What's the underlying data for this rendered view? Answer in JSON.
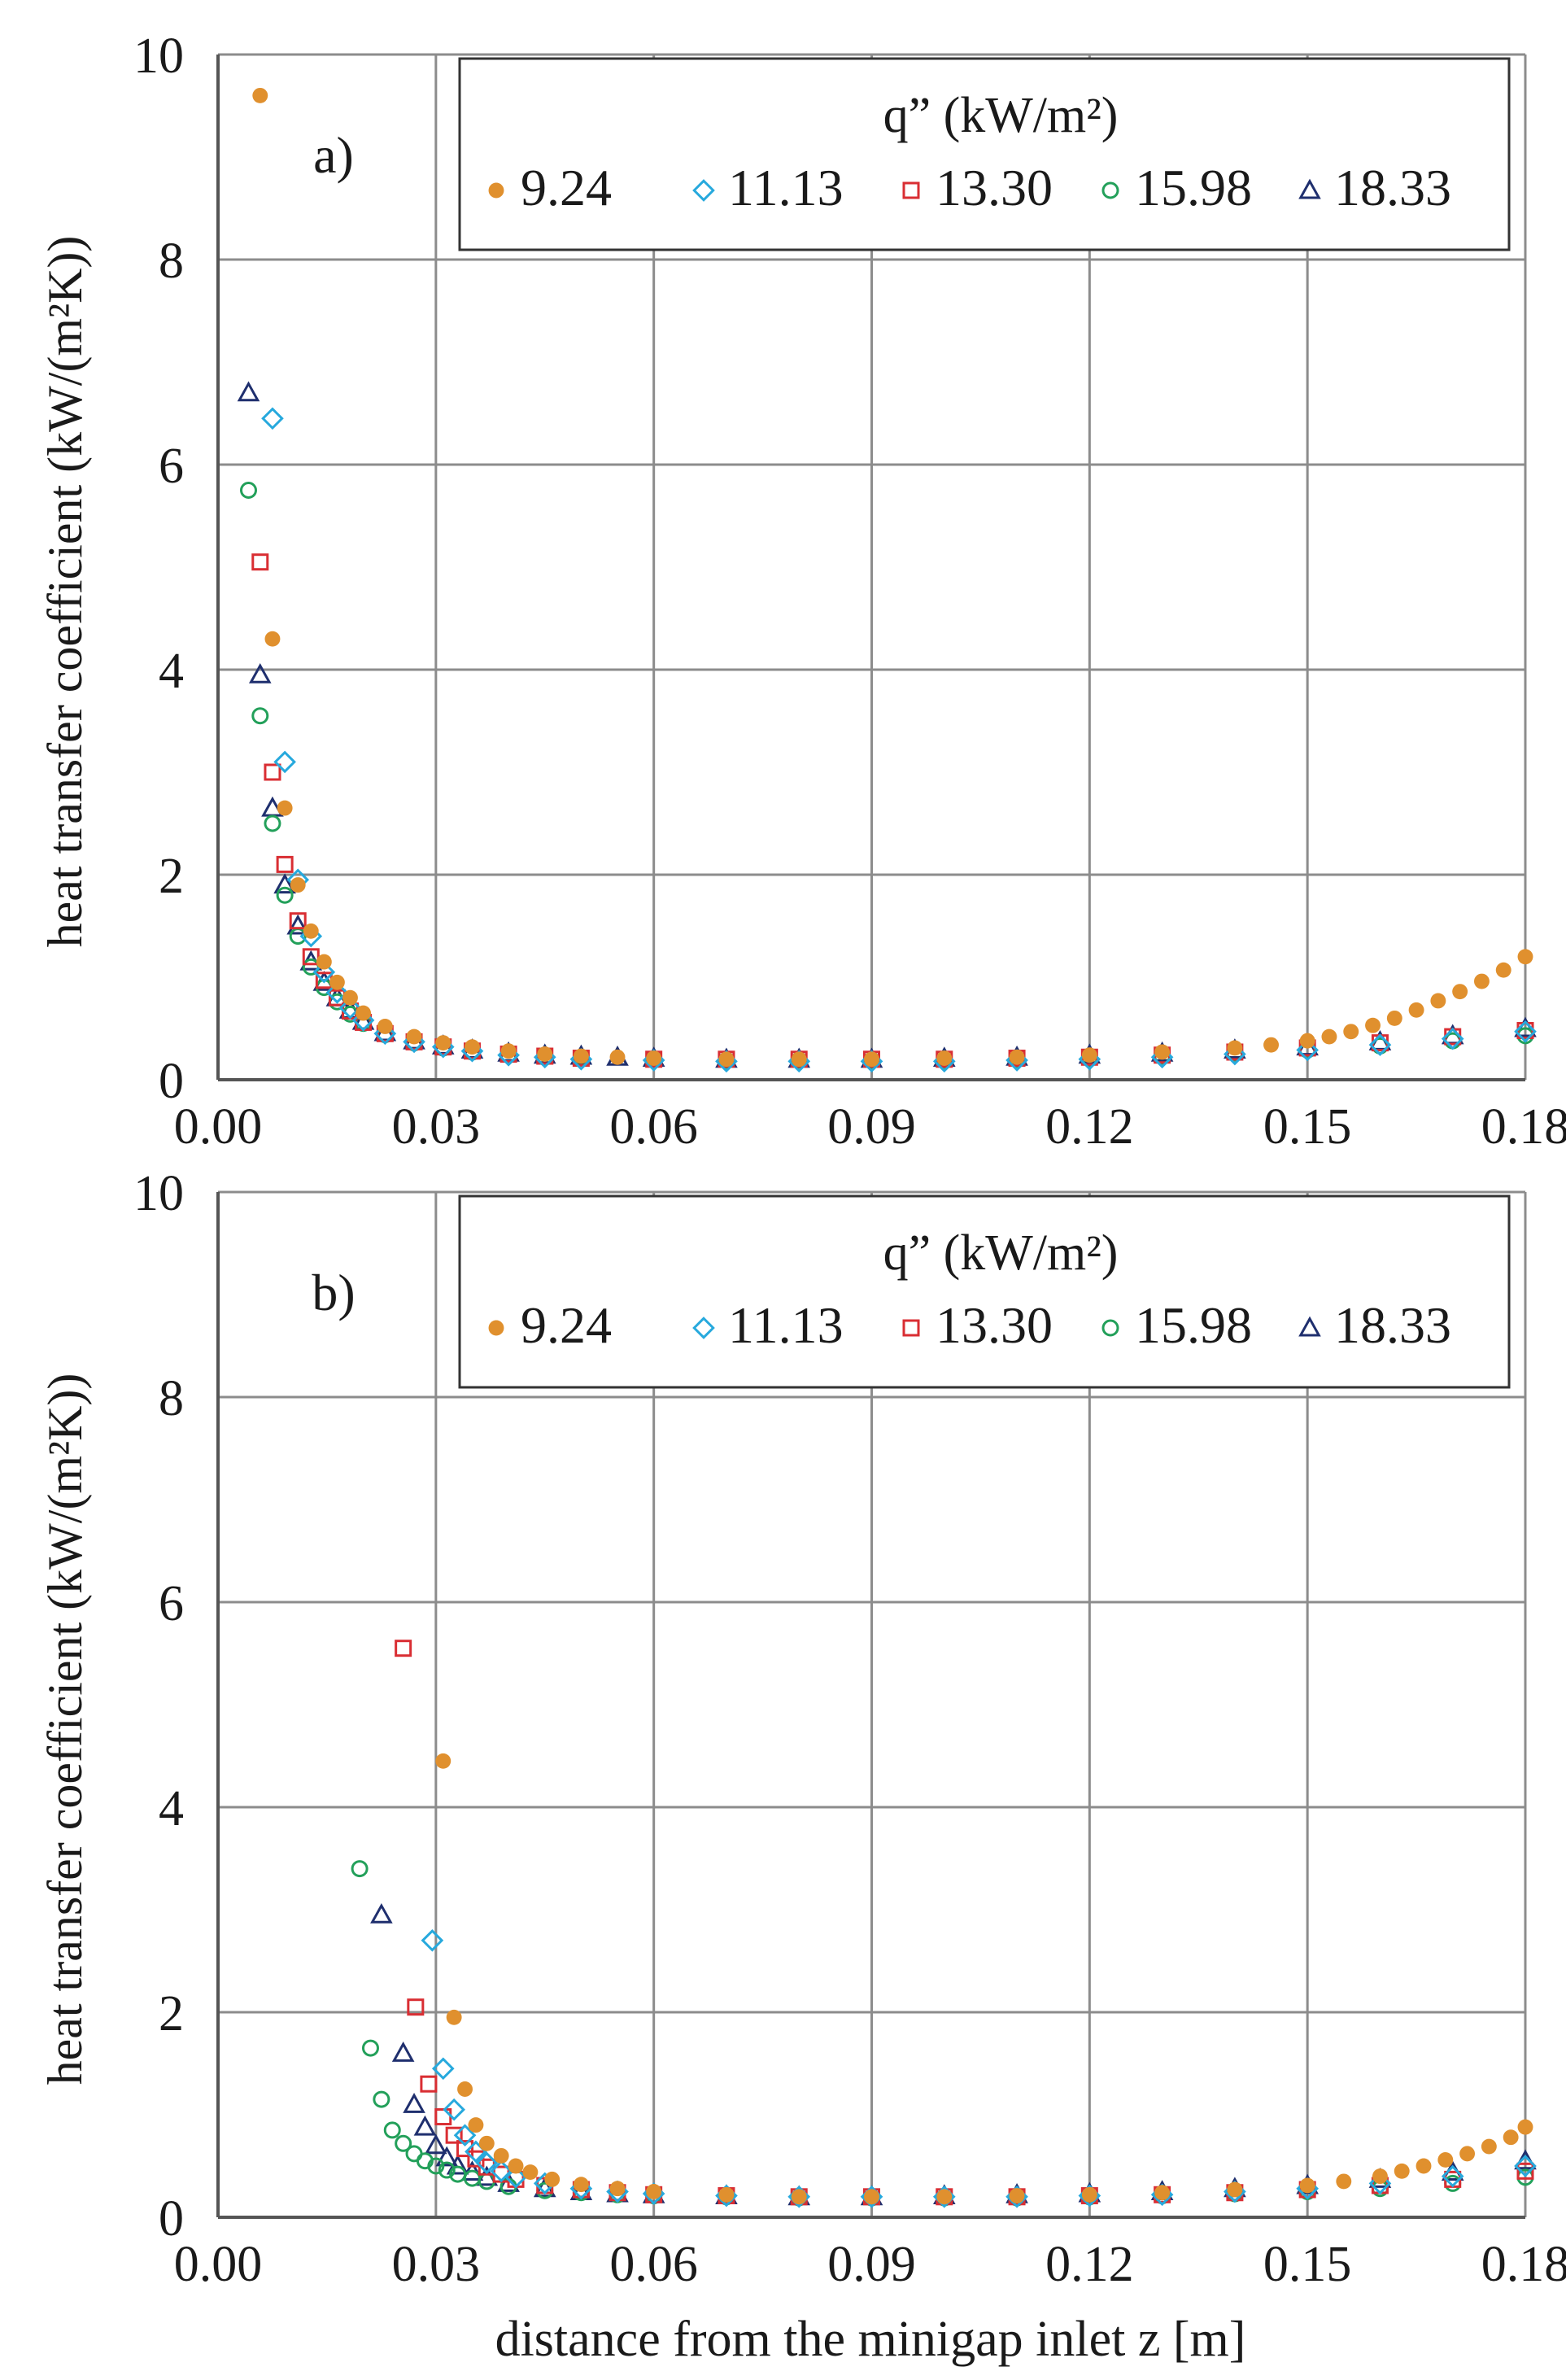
{
  "figure": {
    "xlabel": "distance from the minigap inlet z   [m]",
    "ylabel": "heat transfer coefficient   (kW/(m²K))",
    "colors": {
      "grid": "#8c8c8c",
      "axis": "#555555",
      "frame": "#333333"
    }
  },
  "chart_data": [
    {
      "type": "scatter",
      "panel_label": "a)",
      "xlim": [
        0,
        0.18
      ],
      "ylim": [
        0,
        10
      ],
      "xticks": [
        "0.00",
        "0.03",
        "0.06",
        "0.09",
        "0.12",
        "0.15",
        "0.18"
      ],
      "yticks": [
        "0",
        "2",
        "4",
        "6",
        "8",
        "10"
      ],
      "xlabel": "",
      "ylabel": "heat transfer coefficient   (kW/(m²K))",
      "legend": {
        "title": "q”   (kW/m²)",
        "placement": "top-right"
      },
      "series": [
        {
          "name": "9.24",
          "marker": "dot",
          "color": "#e0902e",
          "x": [
            0.0058,
            0.0075,
            0.0092,
            0.011,
            0.0128,
            0.0146,
            0.0164,
            0.0182,
            0.02,
            0.023,
            0.027,
            0.031,
            0.035,
            0.04,
            0.045,
            0.05,
            0.055,
            0.06,
            0.07,
            0.08,
            0.09,
            0.1,
            0.11,
            0.12,
            0.13,
            0.14,
            0.145,
            0.15,
            0.153,
            0.156,
            0.159,
            0.162,
            0.165,
            0.168,
            0.171,
            0.174,
            0.177,
            0.18
          ],
          "y": [
            9.6,
            4.3,
            2.65,
            1.9,
            1.45,
            1.15,
            0.95,
            0.8,
            0.65,
            0.52,
            0.42,
            0.36,
            0.32,
            0.28,
            0.25,
            0.23,
            0.22,
            0.21,
            0.2,
            0.2,
            0.2,
            0.21,
            0.22,
            0.24,
            0.27,
            0.31,
            0.34,
            0.38,
            0.42,
            0.47,
            0.53,
            0.6,
            0.68,
            0.77,
            0.86,
            0.96,
            1.07,
            1.2
          ]
        },
        {
          "name": "11.13",
          "marker": "diamond",
          "color": "#27a9dd",
          "x": [
            0.0075,
            0.0092,
            0.011,
            0.0128,
            0.0146,
            0.0164,
            0.0182,
            0.02,
            0.023,
            0.027,
            0.031,
            0.035,
            0.04,
            0.045,
            0.05,
            0.06,
            0.07,
            0.08,
            0.09,
            0.1,
            0.11,
            0.12,
            0.13,
            0.14,
            0.15,
            0.16,
            0.17,
            0.18
          ],
          "y": [
            6.45,
            3.1,
            1.95,
            1.4,
            1.05,
            0.85,
            0.7,
            0.58,
            0.45,
            0.37,
            0.32,
            0.28,
            0.24,
            0.22,
            0.2,
            0.19,
            0.18,
            0.18,
            0.18,
            0.18,
            0.19,
            0.2,
            0.22,
            0.25,
            0.29,
            0.34,
            0.4,
            0.47
          ]
        },
        {
          "name": "13.30",
          "marker": "square",
          "color": "#d92e33",
          "x": [
            0.0058,
            0.0075,
            0.0092,
            0.011,
            0.0128,
            0.0146,
            0.0164,
            0.0182,
            0.02,
            0.023,
            0.027,
            0.031,
            0.035,
            0.04,
            0.045,
            0.05,
            0.06,
            0.07,
            0.08,
            0.09,
            0.1,
            0.11,
            0.12,
            0.13,
            0.14,
            0.15,
            0.16,
            0.17,
            0.18
          ],
          "y": [
            5.05,
            3.0,
            2.1,
            1.55,
            1.2,
            0.97,
            0.8,
            0.67,
            0.56,
            0.45,
            0.37,
            0.32,
            0.28,
            0.25,
            0.23,
            0.21,
            0.2,
            0.2,
            0.2,
            0.2,
            0.2,
            0.21,
            0.22,
            0.24,
            0.27,
            0.31,
            0.36,
            0.42,
            0.48
          ]
        },
        {
          "name": "15.98",
          "marker": "circle",
          "color": "#23a05a",
          "x": [
            0.0042,
            0.0058,
            0.0075,
            0.0092,
            0.011,
            0.0128,
            0.0146,
            0.0164,
            0.0182,
            0.02,
            0.023,
            0.027,
            0.031,
            0.035,
            0.04,
            0.045,
            0.05,
            0.06,
            0.07,
            0.08,
            0.09,
            0.1,
            0.11,
            0.12,
            0.13,
            0.14,
            0.15,
            0.16,
            0.17,
            0.18
          ],
          "y": [
            5.75,
            3.55,
            2.5,
            1.8,
            1.4,
            1.1,
            0.9,
            0.76,
            0.64,
            0.55,
            0.44,
            0.36,
            0.31,
            0.27,
            0.24,
            0.22,
            0.21,
            0.2,
            0.19,
            0.19,
            0.19,
            0.19,
            0.2,
            0.21,
            0.23,
            0.26,
            0.29,
            0.33,
            0.38,
            0.43
          ]
        },
        {
          "name": "18.33",
          "marker": "triangle",
          "color": "#1f2f6e",
          "x": [
            0.0042,
            0.0058,
            0.0075,
            0.0092,
            0.011,
            0.0128,
            0.0146,
            0.0164,
            0.0182,
            0.02,
            0.023,
            0.027,
            0.031,
            0.035,
            0.04,
            0.045,
            0.05,
            0.055,
            0.06,
            0.07,
            0.08,
            0.09,
            0.1,
            0.11,
            0.12,
            0.13,
            0.14,
            0.15,
            0.16,
            0.17,
            0.18
          ],
          "y": [
            6.7,
            3.95,
            2.65,
            1.9,
            1.5,
            1.15,
            0.95,
            0.8,
            0.68,
            0.57,
            0.46,
            0.38,
            0.33,
            0.29,
            0.26,
            0.24,
            0.23,
            0.22,
            0.21,
            0.2,
            0.2,
            0.2,
            0.21,
            0.22,
            0.24,
            0.26,
            0.29,
            0.32,
            0.37,
            0.43,
            0.5
          ]
        }
      ]
    },
    {
      "type": "scatter",
      "panel_label": "b)",
      "xlim": [
        0,
        0.18
      ],
      "ylim": [
        0,
        10
      ],
      "xticks": [
        "0.00",
        "0.03",
        "0.06",
        "0.09",
        "0.12",
        "0.15",
        "0.18"
      ],
      "yticks": [
        "0",
        "2",
        "4",
        "6",
        "8",
        "10"
      ],
      "xlabel": "distance from the minigap inlet z   [m]",
      "ylabel": "heat transfer coefficient   (kW/(m²K))",
      "legend": {
        "title": "q”   (kW/m²)",
        "placement": "top-right"
      },
      "series": [
        {
          "name": "9.24",
          "marker": "dot",
          "color": "#e0902e",
          "x": [
            0.031,
            0.0325,
            0.034,
            0.0355,
            0.037,
            0.039,
            0.041,
            0.043,
            0.046,
            0.05,
            0.055,
            0.06,
            0.07,
            0.08,
            0.09,
            0.1,
            0.11,
            0.12,
            0.13,
            0.14,
            0.15,
            0.155,
            0.16,
            0.163,
            0.166,
            0.169,
            0.172,
            0.175,
            0.178,
            0.18
          ],
          "y": [
            4.45,
            1.95,
            1.25,
            0.9,
            0.72,
            0.6,
            0.5,
            0.44,
            0.37,
            0.32,
            0.28,
            0.25,
            0.22,
            0.2,
            0.2,
            0.2,
            0.21,
            0.22,
            0.24,
            0.27,
            0.31,
            0.35,
            0.4,
            0.45,
            0.5,
            0.56,
            0.62,
            0.69,
            0.78,
            0.88
          ]
        },
        {
          "name": "11.13",
          "marker": "diamond",
          "color": "#27a9dd",
          "x": [
            0.0295,
            0.031,
            0.0325,
            0.034,
            0.0355,
            0.037,
            0.039,
            0.041,
            0.045,
            0.05,
            0.055,
            0.06,
            0.07,
            0.08,
            0.09,
            0.1,
            0.11,
            0.12,
            0.13,
            0.14,
            0.15,
            0.16,
            0.17,
            0.18
          ],
          "y": [
            2.7,
            1.45,
            1.05,
            0.8,
            0.64,
            0.53,
            0.45,
            0.39,
            0.33,
            0.28,
            0.25,
            0.23,
            0.21,
            0.2,
            0.2,
            0.2,
            0.2,
            0.21,
            0.22,
            0.25,
            0.28,
            0.33,
            0.4,
            0.5
          ]
        },
        {
          "name": "13.30",
          "marker": "square",
          "color": "#d92e33",
          "x": [
            0.0255,
            0.0272,
            0.029,
            0.031,
            0.0325,
            0.034,
            0.0355,
            0.037,
            0.039,
            0.041,
            0.045,
            0.05,
            0.055,
            0.06,
            0.07,
            0.08,
            0.09,
            0.1,
            0.11,
            0.12,
            0.13,
            0.14,
            0.15,
            0.16,
            0.17,
            0.18
          ],
          "y": [
            5.55,
            2.05,
            1.3,
            0.98,
            0.8,
            0.67,
            0.57,
            0.49,
            0.42,
            0.37,
            0.31,
            0.27,
            0.24,
            0.22,
            0.21,
            0.2,
            0.2,
            0.2,
            0.2,
            0.21,
            0.22,
            0.24,
            0.27,
            0.31,
            0.37,
            0.45
          ]
        },
        {
          "name": "15.98",
          "marker": "circle",
          "color": "#23a05a",
          "x": [
            0.0195,
            0.021,
            0.0225,
            0.024,
            0.0255,
            0.027,
            0.0285,
            0.03,
            0.0315,
            0.033,
            0.035,
            0.037,
            0.04,
            0.045,
            0.05,
            0.055,
            0.06,
            0.07,
            0.08,
            0.09,
            0.1,
            0.11,
            0.12,
            0.13,
            0.14,
            0.15,
            0.16,
            0.17,
            0.18
          ],
          "y": [
            3.4,
            1.65,
            1.15,
            0.85,
            0.72,
            0.62,
            0.55,
            0.5,
            0.46,
            0.42,
            0.38,
            0.35,
            0.3,
            0.26,
            0.24,
            0.22,
            0.21,
            0.2,
            0.19,
            0.19,
            0.19,
            0.19,
            0.2,
            0.21,
            0.23,
            0.25,
            0.28,
            0.33,
            0.39
          ]
        },
        {
          "name": "18.33",
          "marker": "triangle",
          "color": "#1f2f6e",
          "x": [
            0.0225,
            0.0255,
            0.027,
            0.0285,
            0.03,
            0.0315,
            0.033,
            0.035,
            0.037,
            0.04,
            0.045,
            0.05,
            0.055,
            0.06,
            0.07,
            0.08,
            0.09,
            0.1,
            0.11,
            0.12,
            0.13,
            0.14,
            0.15,
            0.16,
            0.17,
            0.18
          ],
          "y": [
            2.95,
            1.6,
            1.1,
            0.88,
            0.7,
            0.58,
            0.5,
            0.44,
            0.39,
            0.33,
            0.28,
            0.25,
            0.23,
            0.22,
            0.21,
            0.2,
            0.2,
            0.21,
            0.22,
            0.23,
            0.25,
            0.28,
            0.31,
            0.37,
            0.44,
            0.55
          ]
        }
      ]
    }
  ]
}
